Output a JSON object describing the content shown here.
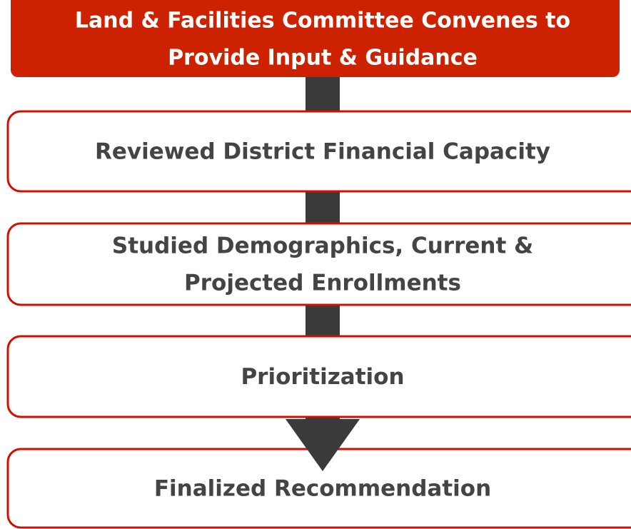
{
  "nodes": [
    {
      "lines": [
        "Land & Facilities Committee Convenes to",
        "Provide Input & Guidance"
      ]
    },
    {
      "lines": [
        "Reviewed District Financial Capacity"
      ]
    },
    {
      "lines": [
        "Studied Demographics, Current &",
        "Projected Enrollments"
      ]
    },
    {
      "lines": [
        "Prioritization"
      ]
    },
    {
      "lines": [
        "Finalized Recommendation"
      ]
    }
  ]
}
